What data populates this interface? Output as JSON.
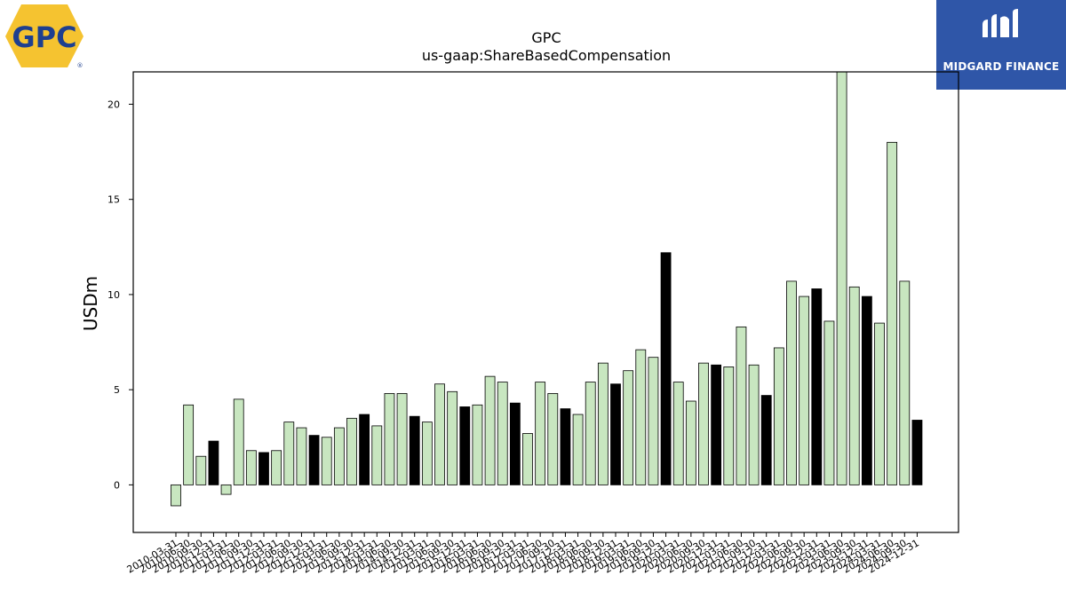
{
  "logos": {
    "left": {
      "text": "GPC",
      "mark": "®",
      "colors": {
        "fill": "#f5c330",
        "text": "#1e3f8f"
      }
    },
    "right": {
      "text": "MIDGARD FINANCE",
      "colors": {
        "background": "#2f56a8",
        "text": "#ffffff"
      }
    }
  },
  "chart_data": {
    "type": "bar",
    "title": "GPC",
    "subtitle": "us-gaap:ShareBasedCompensation",
    "xlabel": "",
    "ylabel": "USDm",
    "ylim": [
      -2.5,
      21.7
    ],
    "yticks": [
      0,
      5,
      10,
      15,
      20
    ],
    "grid": false,
    "colors": {
      "quarter": "#c8e6c0",
      "annual": "#000000",
      "edge": "#000000"
    },
    "categories": [
      "2010-03-31",
      "2010-06-30",
      "2010-09-30",
      "2010-12-31",
      "2011-03-31",
      "2011-06-30",
      "2011-09-30",
      "2011-12-31",
      "2012-03-31",
      "2012-06-30",
      "2012-09-30",
      "2012-12-31",
      "2013-03-31",
      "2013-06-30",
      "2013-09-30",
      "2013-12-31",
      "2014-03-31",
      "2014-06-30",
      "2014-09-30",
      "2014-12-31",
      "2015-03-31",
      "2015-06-30",
      "2015-09-30",
      "2015-12-31",
      "2016-03-31",
      "2016-06-30",
      "2016-09-30",
      "2016-12-31",
      "2017-03-31",
      "2017-06-30",
      "2017-09-30",
      "2017-12-31",
      "2018-03-31",
      "2018-06-30",
      "2018-09-30",
      "2018-12-31",
      "2019-03-31",
      "2019-06-30",
      "2019-09-30",
      "2019-12-31",
      "2020-03-31",
      "2020-06-30",
      "2020-09-30",
      "2020-12-31",
      "2021-03-31",
      "2021-06-30",
      "2021-09-30",
      "2021-12-31",
      "2022-03-31",
      "2022-06-30",
      "2022-09-30",
      "2022-12-31",
      "2023-03-31",
      "2023-06-30",
      "2023-09-30",
      "2023-12-31",
      "2024-03-31",
      "2024-06-30",
      "2024-09-30",
      "2024-12-31"
    ],
    "values": [
      -1.1,
      4.2,
      1.5,
      2.3,
      -0.5,
      4.5,
      1.8,
      1.7,
      1.8,
      3.3,
      3.0,
      2.6,
      2.5,
      3.0,
      3.5,
      3.7,
      3.1,
      4.8,
      4.8,
      3.6,
      3.3,
      5.3,
      4.9,
      4.1,
      4.2,
      5.7,
      5.4,
      4.3,
      2.7,
      5.4,
      4.8,
      4.0,
      3.7,
      5.4,
      6.4,
      5.3,
      6.0,
      7.1,
      6.7,
      12.2,
      5.4,
      4.4,
      6.4,
      6.3,
      6.2,
      8.3,
      6.3,
      4.7,
      7.2,
      10.7,
      9.9,
      10.3,
      8.6,
      22.0,
      10.4,
      9.9,
      8.5,
      18.0,
      10.7,
      3.4
    ],
    "annual": [
      false,
      false,
      false,
      true,
      false,
      false,
      false,
      true,
      false,
      false,
      false,
      true,
      false,
      false,
      false,
      true,
      false,
      false,
      false,
      true,
      false,
      false,
      false,
      true,
      false,
      false,
      false,
      true,
      false,
      false,
      false,
      true,
      false,
      false,
      false,
      true,
      false,
      false,
      false,
      true,
      false,
      false,
      false,
      true,
      false,
      false,
      false,
      true,
      false,
      false,
      false,
      true,
      false,
      false,
      false,
      true,
      false,
      false,
      false,
      true
    ]
  }
}
